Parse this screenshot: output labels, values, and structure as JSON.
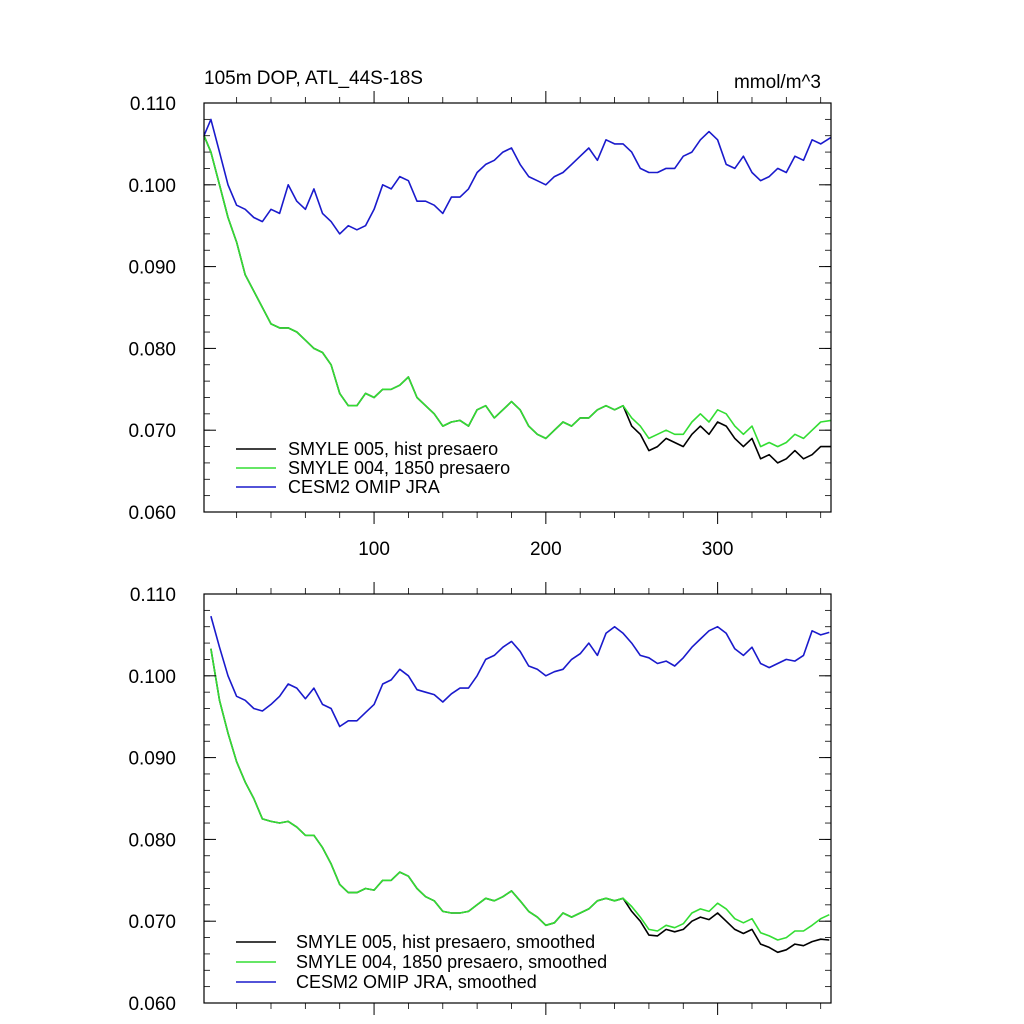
{
  "chart_data": [
    {
      "type": "line",
      "title": "105m DOP, ATL_44S-18S",
      "units": "mmol/m^3",
      "xlim": [
        1,
        366
      ],
      "ylim": [
        0.06,
        0.11
      ],
      "xticks": [
        100,
        200,
        300
      ],
      "xtick_labels": [
        "100",
        "200",
        "300"
      ],
      "yticks": [
        0.06,
        0.07,
        0.08,
        0.09,
        0.1,
        0.11
      ],
      "ytick_labels": [
        "0.060",
        "0.070",
        "0.080",
        "0.090",
        "0.100",
        "0.110"
      ],
      "grid": false,
      "legend_position": "bottom-left",
      "series": [
        {
          "name": "SMYLE 005, hist presaero",
          "color": "#000000",
          "x": [
            1,
            5,
            10,
            15,
            20,
            25,
            30,
            35,
            40,
            45,
            50,
            55,
            60,
            65,
            70,
            75,
            80,
            85,
            90,
            95,
            100,
            105,
            110,
            115,
            120,
            125,
            130,
            135,
            140,
            145,
            150,
            155,
            160,
            165,
            170,
            175,
            180,
            185,
            190,
            195,
            200,
            205,
            210,
            215,
            220,
            225,
            230,
            235,
            240,
            245,
            250,
            255,
            260,
            265,
            270,
            275,
            280,
            285,
            290,
            295,
            300,
            305,
            310,
            315,
            320,
            325,
            330,
            335,
            340,
            345,
            350,
            355,
            360,
            366
          ],
          "y": [
            0.106,
            0.104,
            0.1,
            0.096,
            0.093,
            0.089,
            0.087,
            0.085,
            0.083,
            0.0825,
            0.0825,
            0.082,
            0.081,
            0.08,
            0.0795,
            0.078,
            0.0745,
            0.073,
            0.073,
            0.0745,
            0.074,
            0.075,
            0.075,
            0.0755,
            0.0765,
            0.074,
            0.073,
            0.072,
            0.0705,
            0.071,
            0.0712,
            0.0705,
            0.0725,
            0.073,
            0.0715,
            0.0725,
            0.0735,
            0.0725,
            0.0705,
            0.0695,
            0.069,
            0.07,
            0.071,
            0.0705,
            0.0715,
            0.0715,
            0.0725,
            0.073,
            0.0725,
            0.073,
            0.0705,
            0.0695,
            0.0675,
            0.068,
            0.069,
            0.0685,
            0.068,
            0.0695,
            0.0705,
            0.0695,
            0.071,
            0.0705,
            0.069,
            0.068,
            0.069,
            0.0665,
            0.067,
            0.066,
            0.0665,
            0.0675,
            0.0665,
            0.067,
            0.068,
            0.068
          ]
        },
        {
          "name": "SMYLE 004, 1850 presaero",
          "color": "#33dd33",
          "x": [
            1,
            5,
            10,
            15,
            20,
            25,
            30,
            35,
            40,
            45,
            50,
            55,
            60,
            65,
            70,
            75,
            80,
            85,
            90,
            95,
            100,
            105,
            110,
            115,
            120,
            125,
            130,
            135,
            140,
            145,
            150,
            155,
            160,
            165,
            170,
            175,
            180,
            185,
            190,
            195,
            200,
            205,
            210,
            215,
            220,
            225,
            230,
            235,
            240,
            245,
            250,
            255,
            260,
            265,
            270,
            275,
            280,
            285,
            290,
            295,
            300,
            305,
            310,
            315,
            320,
            325,
            330,
            335,
            340,
            345,
            350,
            355,
            360,
            366
          ],
          "y": [
            0.106,
            0.104,
            0.1,
            0.096,
            0.093,
            0.089,
            0.087,
            0.085,
            0.083,
            0.0825,
            0.0825,
            0.082,
            0.081,
            0.08,
            0.0795,
            0.078,
            0.0745,
            0.073,
            0.073,
            0.0745,
            0.074,
            0.075,
            0.075,
            0.0755,
            0.0765,
            0.074,
            0.073,
            0.072,
            0.0705,
            0.071,
            0.0712,
            0.0705,
            0.0725,
            0.073,
            0.0715,
            0.0725,
            0.0735,
            0.0725,
            0.0705,
            0.0695,
            0.069,
            0.07,
            0.071,
            0.0705,
            0.0715,
            0.0715,
            0.0725,
            0.073,
            0.0725,
            0.073,
            0.0715,
            0.0705,
            0.069,
            0.0695,
            0.07,
            0.0695,
            0.0695,
            0.071,
            0.072,
            0.071,
            0.0725,
            0.072,
            0.0705,
            0.0695,
            0.0705,
            0.068,
            0.0685,
            0.068,
            0.0685,
            0.0695,
            0.069,
            0.07,
            0.071,
            0.0712
          ]
        },
        {
          "name": "CESM2 OMIP JRA",
          "color": "#1a1acc",
          "x": [
            1,
            5,
            10,
            15,
            20,
            25,
            30,
            35,
            40,
            45,
            50,
            55,
            60,
            65,
            70,
            75,
            80,
            85,
            90,
            95,
            100,
            105,
            110,
            115,
            120,
            125,
            130,
            135,
            140,
            145,
            150,
            155,
            160,
            165,
            170,
            175,
            180,
            185,
            190,
            195,
            200,
            205,
            210,
            215,
            220,
            225,
            230,
            235,
            240,
            245,
            250,
            255,
            260,
            265,
            270,
            275,
            280,
            285,
            290,
            295,
            300,
            305,
            310,
            315,
            320,
            325,
            330,
            335,
            340,
            345,
            350,
            355,
            360,
            366
          ],
          "y": [
            0.106,
            0.108,
            0.104,
            0.1,
            0.0975,
            0.097,
            0.096,
            0.0955,
            0.097,
            0.0965,
            0.1,
            0.098,
            0.097,
            0.0995,
            0.0965,
            0.0955,
            0.094,
            0.095,
            0.0945,
            0.095,
            0.097,
            0.1,
            0.0995,
            0.101,
            0.1005,
            0.098,
            0.098,
            0.0975,
            0.0965,
            0.0985,
            0.0985,
            0.0995,
            0.1015,
            0.1025,
            0.103,
            0.104,
            0.1045,
            0.1025,
            0.101,
            0.1005,
            0.1,
            0.101,
            0.1015,
            0.1025,
            0.1035,
            0.1045,
            0.103,
            0.1055,
            0.105,
            0.105,
            0.104,
            0.102,
            0.1015,
            0.1015,
            0.102,
            0.102,
            0.1035,
            0.104,
            0.1055,
            0.1065,
            0.1055,
            0.1025,
            0.102,
            0.1035,
            0.1015,
            0.1005,
            0.101,
            0.102,
            0.1015,
            0.1035,
            0.103,
            0.1055,
            0.105,
            0.1058
          ]
        }
      ]
    },
    {
      "type": "line",
      "xlim": [
        1,
        366
      ],
      "ylim": [
        0.06,
        0.11
      ],
      "xticks": [
        100,
        200,
        300
      ],
      "yticks": [
        0.06,
        0.07,
        0.08,
        0.09,
        0.1,
        0.11
      ],
      "ytick_labels": [
        "0.060",
        "0.070",
        "0.080",
        "0.090",
        "0.100",
        "0.110"
      ],
      "grid": false,
      "legend_position": "bottom-left",
      "series": [
        {
          "name": "SMYLE 005, hist presaero, smoothed",
          "color": "#000000",
          "x": [
            5,
            10,
            15,
            20,
            25,
            30,
            35,
            40,
            45,
            50,
            55,
            60,
            65,
            70,
            75,
            80,
            85,
            90,
            95,
            100,
            105,
            110,
            115,
            120,
            125,
            130,
            135,
            140,
            145,
            150,
            155,
            160,
            165,
            170,
            175,
            180,
            185,
            190,
            195,
            200,
            205,
            210,
            215,
            220,
            225,
            230,
            235,
            240,
            245,
            250,
            255,
            260,
            265,
            270,
            275,
            280,
            285,
            290,
            295,
            300,
            305,
            310,
            315,
            320,
            325,
            330,
            335,
            340,
            345,
            350,
            355,
            360,
            365
          ],
          "y": [
            0.1033,
            0.097,
            0.093,
            0.0895,
            0.087,
            0.085,
            0.0825,
            0.0822,
            0.082,
            0.0822,
            0.0815,
            0.0805,
            0.0805,
            0.079,
            0.077,
            0.0745,
            0.0735,
            0.0735,
            0.074,
            0.0738,
            0.075,
            0.075,
            0.076,
            0.0755,
            0.074,
            0.073,
            0.0725,
            0.0712,
            0.071,
            0.071,
            0.0712,
            0.072,
            0.0728,
            0.0725,
            0.073,
            0.0737,
            0.0725,
            0.0712,
            0.0705,
            0.0695,
            0.0698,
            0.071,
            0.0705,
            0.071,
            0.0715,
            0.0725,
            0.0728,
            0.0725,
            0.0728,
            0.0712,
            0.07,
            0.0683,
            0.0682,
            0.069,
            0.0687,
            0.069,
            0.07,
            0.0705,
            0.0702,
            0.071,
            0.07,
            0.069,
            0.0685,
            0.069,
            0.0672,
            0.0668,
            0.0662,
            0.0665,
            0.0672,
            0.067,
            0.0675,
            0.0678,
            0.0677
          ]
        },
        {
          "name": "SMYLE 004, 1850 presaero, smoothed",
          "color": "#33dd33",
          "x": [
            5,
            10,
            15,
            20,
            25,
            30,
            35,
            40,
            45,
            50,
            55,
            60,
            65,
            70,
            75,
            80,
            85,
            90,
            95,
            100,
            105,
            110,
            115,
            120,
            125,
            130,
            135,
            140,
            145,
            150,
            155,
            160,
            165,
            170,
            175,
            180,
            185,
            190,
            195,
            200,
            205,
            210,
            215,
            220,
            225,
            230,
            235,
            240,
            245,
            250,
            255,
            260,
            265,
            270,
            275,
            280,
            285,
            290,
            295,
            300,
            305,
            310,
            315,
            320,
            325,
            330,
            335,
            340,
            345,
            350,
            355,
            360,
            365
          ],
          "y": [
            0.1033,
            0.097,
            0.093,
            0.0895,
            0.087,
            0.085,
            0.0825,
            0.0822,
            0.082,
            0.0822,
            0.0815,
            0.0805,
            0.0805,
            0.079,
            0.077,
            0.0745,
            0.0735,
            0.0735,
            0.074,
            0.0738,
            0.075,
            0.075,
            0.076,
            0.0755,
            0.074,
            0.073,
            0.0725,
            0.0712,
            0.071,
            0.071,
            0.0712,
            0.072,
            0.0728,
            0.0725,
            0.073,
            0.0737,
            0.0725,
            0.0712,
            0.0705,
            0.0695,
            0.0698,
            0.071,
            0.0705,
            0.071,
            0.0715,
            0.0725,
            0.0728,
            0.0725,
            0.0728,
            0.0718,
            0.0705,
            0.069,
            0.0688,
            0.0695,
            0.0692,
            0.0697,
            0.071,
            0.0715,
            0.0712,
            0.0722,
            0.0715,
            0.0703,
            0.0698,
            0.0703,
            0.0686,
            0.0682,
            0.0677,
            0.068,
            0.0688,
            0.0688,
            0.0695,
            0.0703,
            0.0708
          ]
        },
        {
          "name": "CESM2 OMIP JRA, smoothed",
          "color": "#1a1acc",
          "x": [
            5,
            10,
            15,
            20,
            25,
            30,
            35,
            40,
            45,
            50,
            55,
            60,
            65,
            70,
            75,
            80,
            85,
            90,
            95,
            100,
            105,
            110,
            115,
            120,
            125,
            130,
            135,
            140,
            145,
            150,
            155,
            160,
            165,
            170,
            175,
            180,
            185,
            190,
            195,
            200,
            205,
            210,
            215,
            220,
            225,
            230,
            235,
            240,
            245,
            250,
            255,
            260,
            265,
            270,
            275,
            280,
            285,
            290,
            295,
            300,
            305,
            310,
            315,
            320,
            325,
            330,
            335,
            340,
            345,
            350,
            355,
            360,
            365
          ],
          "y": [
            0.1073,
            0.1035,
            0.1,
            0.0975,
            0.097,
            0.096,
            0.0957,
            0.0965,
            0.0975,
            0.099,
            0.0985,
            0.0972,
            0.0985,
            0.0965,
            0.096,
            0.0938,
            0.0945,
            0.0945,
            0.0955,
            0.0965,
            0.099,
            0.0995,
            0.1008,
            0.1,
            0.0983,
            0.098,
            0.0977,
            0.0968,
            0.0978,
            0.0985,
            0.0985,
            0.1,
            0.102,
            0.1025,
            0.1035,
            0.1042,
            0.103,
            0.1012,
            0.1008,
            0.1,
            0.1005,
            0.1008,
            0.102,
            0.1027,
            0.104,
            0.1025,
            0.1052,
            0.106,
            0.1052,
            0.104,
            0.1025,
            0.1022,
            0.1015,
            0.1018,
            0.1012,
            0.1022,
            0.1035,
            0.1045,
            0.1055,
            0.106,
            0.1052,
            0.1033,
            0.1025,
            0.1035,
            0.1015,
            0.101,
            0.1015,
            0.102,
            0.1018,
            0.1025,
            0.1055,
            0.105,
            0.1053
          ]
        }
      ]
    }
  ]
}
